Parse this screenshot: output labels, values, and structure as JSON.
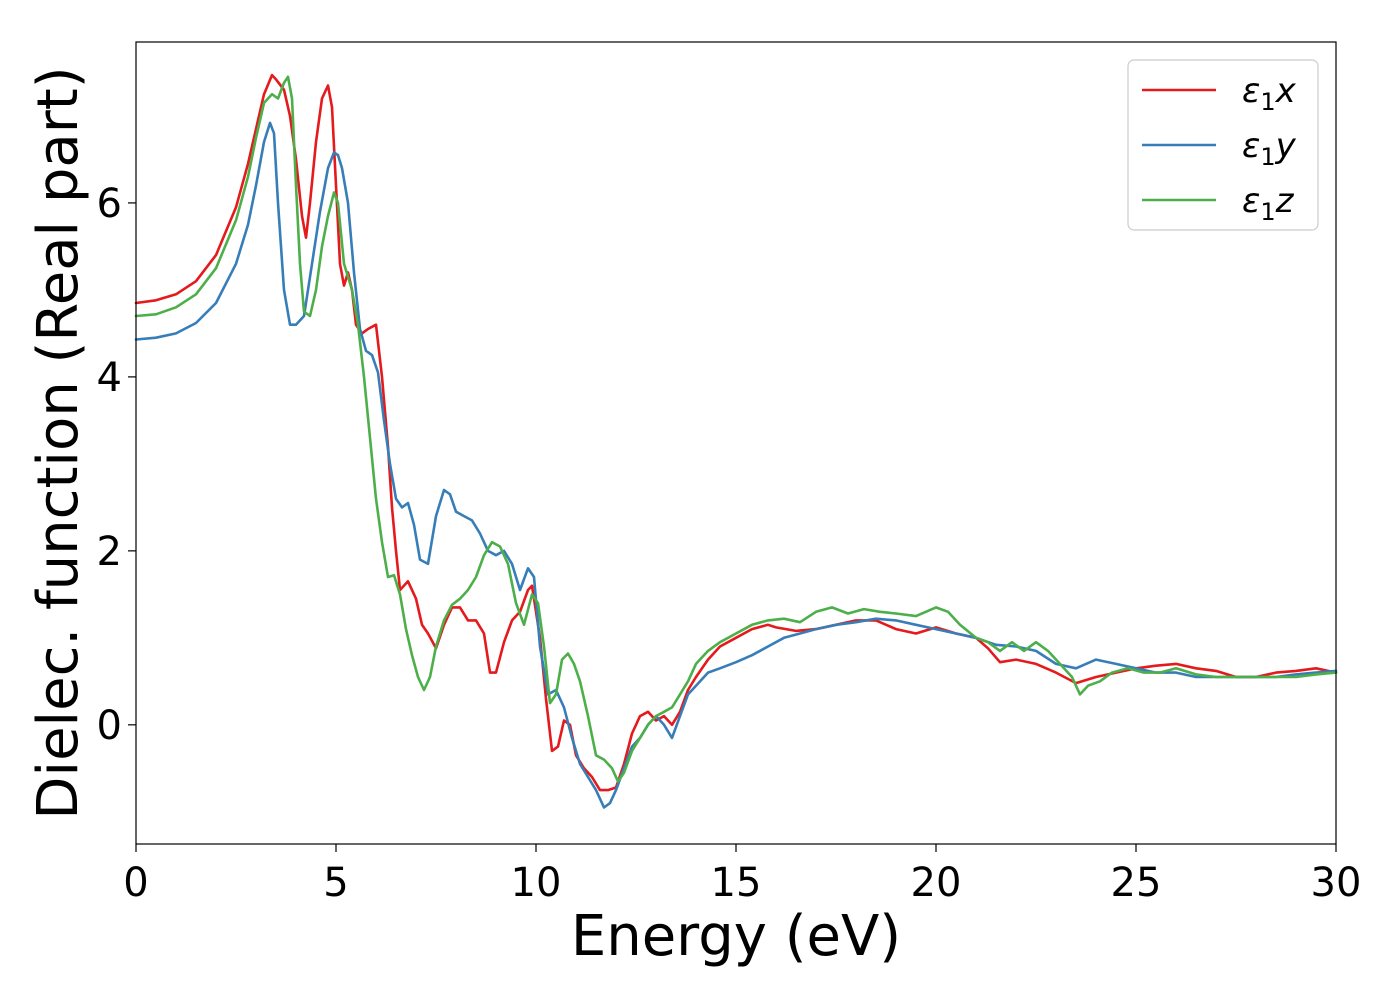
{
  "chart_data": {
    "type": "line",
    "title": "",
    "xlabel": "Energy (eV)",
    "ylabel": "Dielec. function (Real part)",
    "xlim": [
      0,
      30
    ],
    "ylim": [
      -1.37,
      7.85
    ],
    "xticks": [
      0,
      5,
      10,
      15,
      20,
      25,
      30
    ],
    "yticks": [
      0,
      2,
      4,
      6
    ],
    "grid": false,
    "legend_position": "top-right",
    "series": [
      {
        "name": "ε₁x",
        "legend_base": "ε",
        "legend_sub": "1",
        "legend_axis": "x",
        "color": "#e41a1c",
        "x": [
          0,
          0.5,
          1,
          1.5,
          2,
          2.5,
          2.8,
          3,
          3.2,
          3.4,
          3.5,
          3.7,
          3.85,
          4,
          4.15,
          4.25,
          4.35,
          4.5,
          4.65,
          4.8,
          4.9,
          5,
          5.1,
          5.2,
          5.3,
          5.4,
          5.5,
          5.65,
          5.8,
          6,
          6.15,
          6.3,
          6.4,
          6.5,
          6.6,
          6.8,
          7,
          7.15,
          7.3,
          7.5,
          7.7,
          7.9,
          8.1,
          8.3,
          8.5,
          8.7,
          8.85,
          9,
          9.2,
          9.4,
          9.6,
          9.8,
          9.9,
          10.1,
          10.25,
          10.4,
          10.55,
          10.7,
          10.85,
          11,
          11.2,
          11.4,
          11.6,
          11.8,
          12,
          12.2,
          12.4,
          12.6,
          12.8,
          13,
          13.2,
          13.4,
          13.6,
          13.8,
          14,
          14.3,
          14.6,
          15,
          15.4,
          15.8,
          16,
          16.5,
          17,
          17.5,
          18,
          18.5,
          19,
          19.5,
          20,
          20.5,
          21,
          21.3,
          21.6,
          22,
          22.5,
          23,
          23.5,
          24,
          24.5,
          25,
          25.5,
          26,
          26.5,
          27,
          27.5,
          28,
          28.5,
          29,
          29.5,
          30
        ],
        "y": [
          4.85,
          4.88,
          4.95,
          5.1,
          5.4,
          5.95,
          6.45,
          6.85,
          7.25,
          7.47,
          7.42,
          7.3,
          7.0,
          6.5,
          5.85,
          5.6,
          6.0,
          6.7,
          7.2,
          7.35,
          7.1,
          6.2,
          5.3,
          5.05,
          5.2,
          5.0,
          4.6,
          4.5,
          4.55,
          4.6,
          4.0,
          3.2,
          2.5,
          2.0,
          1.55,
          1.65,
          1.45,
          1.15,
          1.05,
          0.88,
          1.15,
          1.35,
          1.35,
          1.2,
          1.2,
          1.05,
          0.6,
          0.6,
          0.95,
          1.2,
          1.3,
          1.55,
          1.6,
          1.0,
          0.3,
          -0.3,
          -0.25,
          0.05,
          0.0,
          -0.35,
          -0.5,
          -0.6,
          -0.75,
          -0.75,
          -0.72,
          -0.45,
          -0.1,
          0.1,
          0.15,
          0.05,
          0.1,
          0.0,
          0.15,
          0.4,
          0.55,
          0.75,
          0.9,
          1.0,
          1.1,
          1.15,
          1.12,
          1.08,
          1.1,
          1.15,
          1.2,
          1.2,
          1.1,
          1.05,
          1.12,
          1.05,
          1.0,
          0.88,
          0.72,
          0.75,
          0.7,
          0.6,
          0.48,
          0.55,
          0.6,
          0.65,
          0.68,
          0.7,
          0.65,
          0.62,
          0.55,
          0.55,
          0.6,
          0.62,
          0.65,
          0.6
        ]
      },
      {
        "name": "ε₁y",
        "legend_base": "ε",
        "legend_sub": "1",
        "legend_axis": "y",
        "color": "#377eb8",
        "x": [
          0,
          0.5,
          1,
          1.5,
          2,
          2.5,
          2.8,
          3,
          3.2,
          3.35,
          3.45,
          3.55,
          3.7,
          3.85,
          4,
          4.2,
          4.4,
          4.6,
          4.8,
          4.95,
          5.05,
          5.15,
          5.3,
          5.45,
          5.6,
          5.75,
          5.9,
          6.05,
          6.2,
          6.35,
          6.5,
          6.65,
          6.8,
          6.95,
          7.1,
          7.3,
          7.5,
          7.7,
          7.85,
          8,
          8.2,
          8.4,
          8.6,
          8.8,
          9,
          9.2,
          9.4,
          9.6,
          9.8,
          9.95,
          10.1,
          10.3,
          10.5,
          10.7,
          10.9,
          11.1,
          11.3,
          11.5,
          11.7,
          11.85,
          12,
          12.2,
          12.4,
          12.6,
          12.8,
          13,
          13.2,
          13.4,
          13.6,
          13.8,
          14,
          14.3,
          14.6,
          15,
          15.4,
          15.8,
          16.2,
          16.6,
          17,
          17.5,
          18,
          18.5,
          19,
          19.5,
          20,
          20.5,
          21,
          21.5,
          22,
          22.5,
          23,
          23.5,
          24,
          24.5,
          25,
          25.5,
          26,
          26.5,
          27,
          27.5,
          28,
          28.5,
          29,
          29.5,
          30
        ],
        "y": [
          4.43,
          4.45,
          4.5,
          4.62,
          4.85,
          5.3,
          5.75,
          6.2,
          6.7,
          6.92,
          6.8,
          6.0,
          5.0,
          4.6,
          4.6,
          4.7,
          5.3,
          5.9,
          6.4,
          6.58,
          6.55,
          6.4,
          6.0,
          5.2,
          4.55,
          4.3,
          4.25,
          4.05,
          3.5,
          3.0,
          2.6,
          2.5,
          2.55,
          2.3,
          1.9,
          1.85,
          2.4,
          2.7,
          2.65,
          2.45,
          2.4,
          2.35,
          2.2,
          2.0,
          1.95,
          2.0,
          1.85,
          1.55,
          1.8,
          1.7,
          0.9,
          0.35,
          0.4,
          0.2,
          -0.15,
          -0.45,
          -0.6,
          -0.75,
          -0.95,
          -0.9,
          -0.75,
          -0.5,
          -0.25,
          -0.15,
          0.0,
          0.1,
          0.0,
          -0.15,
          0.1,
          0.35,
          0.45,
          0.6,
          0.65,
          0.72,
          0.8,
          0.9,
          1.0,
          1.05,
          1.1,
          1.15,
          1.18,
          1.22,
          1.2,
          1.15,
          1.1,
          1.05,
          1.0,
          0.92,
          0.9,
          0.85,
          0.7,
          0.65,
          0.75,
          0.7,
          0.65,
          0.6,
          0.6,
          0.55,
          0.55,
          0.55,
          0.55,
          0.55,
          0.58,
          0.6,
          0.62
        ]
      },
      {
        "name": "ε₁z",
        "legend_base": "ε",
        "legend_sub": "1",
        "legend_axis": "z",
        "color": "#4daf4a",
        "x": [
          0,
          0.5,
          1,
          1.5,
          2,
          2.5,
          2.8,
          3,
          3.2,
          3.4,
          3.55,
          3.7,
          3.8,
          3.9,
          4,
          4.1,
          4.2,
          4.35,
          4.5,
          4.65,
          4.8,
          4.95,
          5.05,
          5.2,
          5.4,
          5.55,
          5.7,
          5.85,
          6,
          6.15,
          6.3,
          6.45,
          6.6,
          6.75,
          6.9,
          7.05,
          7.2,
          7.35,
          7.5,
          7.7,
          7.9,
          8.1,
          8.3,
          8.5,
          8.7,
          8.9,
          9.1,
          9.3,
          9.5,
          9.7,
          9.9,
          10.05,
          10.2,
          10.35,
          10.5,
          10.65,
          10.8,
          10.95,
          11.1,
          11.3,
          11.5,
          11.7,
          11.9,
          12.05,
          12.2,
          12.4,
          12.6,
          12.8,
          13,
          13.2,
          13.4,
          13.6,
          13.8,
          14,
          14.3,
          14.6,
          15,
          15.4,
          15.8,
          16.2,
          16.6,
          17,
          17.4,
          17.8,
          18.2,
          18.6,
          19,
          19.5,
          20,
          20.3,
          20.6,
          21,
          21.3,
          21.6,
          21.9,
          22.2,
          22.5,
          22.8,
          23.1,
          23.4,
          23.6,
          23.8,
          24.1,
          24.4,
          24.8,
          25.2,
          25.6,
          26,
          26.5,
          27,
          27.5,
          28,
          28.5,
          29,
          29.5,
          30
        ],
        "y": [
          4.7,
          4.72,
          4.8,
          4.95,
          5.25,
          5.8,
          6.3,
          6.75,
          7.15,
          7.25,
          7.2,
          7.38,
          7.45,
          7.2,
          6.2,
          5.3,
          4.75,
          4.7,
          5.0,
          5.5,
          5.85,
          6.12,
          6.0,
          5.3,
          5.0,
          4.6,
          4.0,
          3.3,
          2.6,
          2.1,
          1.7,
          1.72,
          1.5,
          1.1,
          0.8,
          0.55,
          0.4,
          0.55,
          0.9,
          1.2,
          1.38,
          1.45,
          1.55,
          1.7,
          1.95,
          2.1,
          2.05,
          1.85,
          1.4,
          1.15,
          1.5,
          1.4,
          0.9,
          0.25,
          0.35,
          0.75,
          0.82,
          0.7,
          0.5,
          0.1,
          -0.35,
          -0.4,
          -0.5,
          -0.65,
          -0.55,
          -0.3,
          -0.15,
          0.0,
          0.1,
          0.15,
          0.2,
          0.35,
          0.5,
          0.7,
          0.85,
          0.95,
          1.05,
          1.15,
          1.2,
          1.22,
          1.18,
          1.3,
          1.35,
          1.28,
          1.33,
          1.3,
          1.28,
          1.25,
          1.35,
          1.3,
          1.15,
          1.0,
          0.95,
          0.85,
          0.95,
          0.85,
          0.95,
          0.85,
          0.7,
          0.55,
          0.35,
          0.45,
          0.5,
          0.6,
          0.65,
          0.6,
          0.6,
          0.65,
          0.58,
          0.55,
          0.55,
          0.55,
          0.55,
          0.55,
          0.58,
          0.6
        ]
      }
    ]
  }
}
